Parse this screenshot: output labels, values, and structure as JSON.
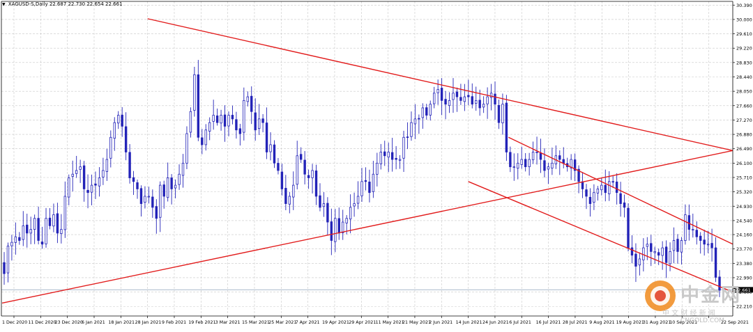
{
  "header": {
    "symbol": "XAGUSD-S,Daily",
    "open": "22.687",
    "high": "22.730",
    "low": "22.654",
    "close": "22.661"
  },
  "watermark": {
    "brand": "中金网",
    "tagline": "中 文 财 经 新 闻",
    "site": "CNGOLD.COM"
  },
  "colors": {
    "background": "#ffffff",
    "grid": "#c8c8c8",
    "candle": "#2323b8",
    "trendline": "#e21c1c",
    "bidline": "#a9b9cc"
  },
  "chart_data": {
    "type": "candlestick",
    "title": "XAGUSD-S,Daily",
    "price_axis": {
      "ylim": [
        21.95,
        30.49
      ],
      "ticks": [
        "30.390",
        "30.000",
        "29.610",
        "29.220",
        "28.830",
        "28.440",
        "28.050",
        "27.660",
        "27.270",
        "26.880",
        "26.490",
        "26.100",
        "25.710",
        "25.320",
        "24.930",
        "24.540",
        "24.160",
        "23.770",
        "23.380",
        "22.990",
        "22.600",
        "22.210"
      ],
      "current_price": "22.661"
    },
    "time_axis": {
      "ticks": [
        "1 Dec 2020",
        "11 Dec 2020",
        "23 Dec 2020",
        "6 Jan 2021",
        "18 Jan 2021",
        "28 Jan 2021",
        "9 Feb 2021",
        "19 Feb 2021",
        "3 Mar 2021",
        "15 Mar 2021",
        "25 Mar 2021",
        "7 Apr 2021",
        "19 Apr 2021",
        "29 Apr 2021",
        "11 May 2021",
        "21 May 2021",
        "2 Jun 2021",
        "14 Jun 2021",
        "24 Jun 2021",
        "6 Jul 2021",
        "16 Jul 2021",
        "28 Jul 2021",
        "9 Aug 2021",
        "19 Aug 2021",
        "31 Aug 2021",
        "10 Sep 2021",
        "22 Sep 2021"
      ]
    },
    "grid": true,
    "close_series": [
      23.1,
      23.85,
      23.95,
      24.1,
      24.0,
      24.4,
      24.2,
      24.3,
      24.6,
      24.0,
      23.9,
      24.6,
      24.4,
      24.7,
      24.2,
      24.3,
      25.2,
      25.7,
      25.8,
      25.9,
      26.0,
      25.4,
      25.3,
      25.5,
      25.5,
      25.7,
      25.9,
      26.2,
      26.8,
      27.2,
      27.4,
      27.1,
      26.4,
      25.7,
      25.6,
      25.4,
      25.0,
      25.2,
      25.2,
      24.9,
      24.6,
      25.5,
      25.2,
      25.7,
      25.4,
      25.5,
      25.8,
      26.1,
      26.9,
      27.5,
      28.5,
      26.8,
      26.6,
      27.0,
      27.2,
      27.4,
      27.2,
      27.4,
      27.1,
      27.4,
      27.3,
      27.0,
      26.9,
      27.8,
      27.9,
      27.5,
      27.0,
      27.3,
      27.2,
      26.4,
      26.6,
      26.1,
      25.9,
      25.4,
      25.0,
      25.2,
      25.5,
      26.3,
      26.2,
      25.8,
      25.7,
      25.9,
      25.2,
      24.9,
      25.0,
      24.5,
      24.0,
      24.6,
      24.2,
      24.5,
      24.6,
      24.9,
      25.0,
      25.2,
      25.6,
      25.6,
      25.3,
      25.8,
      26.1,
      26.4,
      26.3,
      26.4,
      26.2,
      26.2,
      26.2,
      26.8,
      26.8,
      27.2,
      27.3,
      27.3,
      27.6,
      27.4,
      27.7,
      28.0,
      28.1,
      27.8,
      27.7,
      27.8,
      28.0,
      27.9,
      27.8,
      27.9,
      27.9,
      27.7,
      27.8,
      27.6,
      27.7,
      27.9,
      28.0,
      27.7,
      27.2,
      27.7,
      26.4,
      26.0,
      26.0,
      26.1,
      26.2,
      26.0,
      26.2,
      26.4,
      26.4,
      26.2,
      25.9,
      26.0,
      26.1,
      26.3,
      26.2,
      26.1,
      26.0,
      26.2,
      25.9,
      25.6,
      25.4,
      25.2,
      25.0,
      25.3,
      25.4,
      25.5,
      25.3,
      25.6,
      25.6,
      25.3,
      25.0,
      24.9,
      23.8,
      23.6,
      23.3,
      23.5,
      23.8,
      23.9,
      23.7,
      23.7,
      23.6,
      23.8,
      23.4,
      23.7,
      24.0,
      23.7,
      24.0,
      24.7,
      24.3,
      24.3,
      24.1,
      24.0,
      23.9,
      23.9,
      23.8,
      23.0,
      22.65
    ],
    "trendlines": [
      {
        "name": "upper-resistance",
        "from": [
          "28 Jan 2021",
          30.02
        ],
        "to": [
          "22 Sep 2021",
          26.44
        ]
      },
      {
        "name": "lower-support",
        "from": [
          "1 Dec 2020",
          22.3
        ],
        "to": [
          "22 Sep 2021",
          26.44
        ]
      },
      {
        "name": "channel-top",
        "from": [
          "1 Jul 2021",
          26.8
        ],
        "to": [
          "22 Sep 2021",
          23.9
        ]
      },
      {
        "name": "channel-bottom",
        "from": [
          "14 Jun 2021",
          25.6
        ],
        "to": [
          "22 Sep 2021",
          22.6
        ]
      }
    ]
  }
}
